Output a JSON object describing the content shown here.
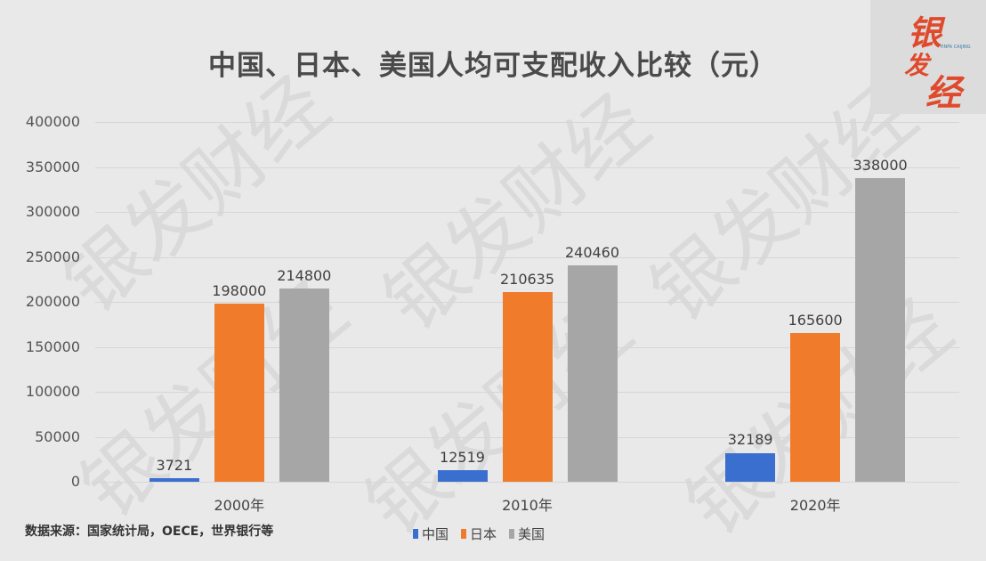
{
  "header": {
    "title": "中国、日本、美国人均可支配收入比较（元）"
  },
  "logo": {
    "chars": [
      "银",
      "发",
      "经"
    ],
    "tagline": "YINFA CAIJING"
  },
  "watermark": "银发财经",
  "footer": {
    "source": "数据来源：国家统计局，OECE，世界银行等"
  },
  "colors": {
    "中国": "#3a6fd0",
    "日本": "#ef7b2b",
    "美国": "#a6a6a6",
    "background": "#e9e9e9",
    "grid": "#d6d6d6"
  },
  "legend": [
    {
      "label": "中国",
      "color": "#3a6fd0"
    },
    {
      "label": "日本",
      "color": "#ef7b2b"
    },
    {
      "label": "美国",
      "color": "#a6a6a6"
    }
  ],
  "yaxis": {
    "ticks": [
      "0",
      "50000",
      "100000",
      "150000",
      "200000",
      "250000",
      "300000",
      "350000",
      "400000"
    ]
  },
  "chart_data": {
    "type": "bar",
    "title": "中国、日本、美国人均可支配收入比较（元）",
    "categories": [
      "2000年",
      "2010年",
      "2020年"
    ],
    "series": [
      {
        "name": "中国",
        "values": [
          3721,
          12519,
          32189
        ],
        "color": "#3a6fd0"
      },
      {
        "name": "日本",
        "values": [
          198000,
          210635,
          165600
        ],
        "color": "#ef7b2b"
      },
      {
        "name": "美国",
        "values": [
          214800,
          240460,
          338000
        ],
        "color": "#a6a6a6"
      }
    ],
    "xlabel": "",
    "ylabel": "",
    "ylim": [
      0,
      400000
    ],
    "yticks": [
      0,
      50000,
      100000,
      150000,
      200000,
      250000,
      300000,
      350000,
      400000
    ],
    "grid": true,
    "legend_position": "bottom",
    "data_labels": true,
    "source_note": "数据来源：国家统计局，OECE，世界银行等"
  }
}
